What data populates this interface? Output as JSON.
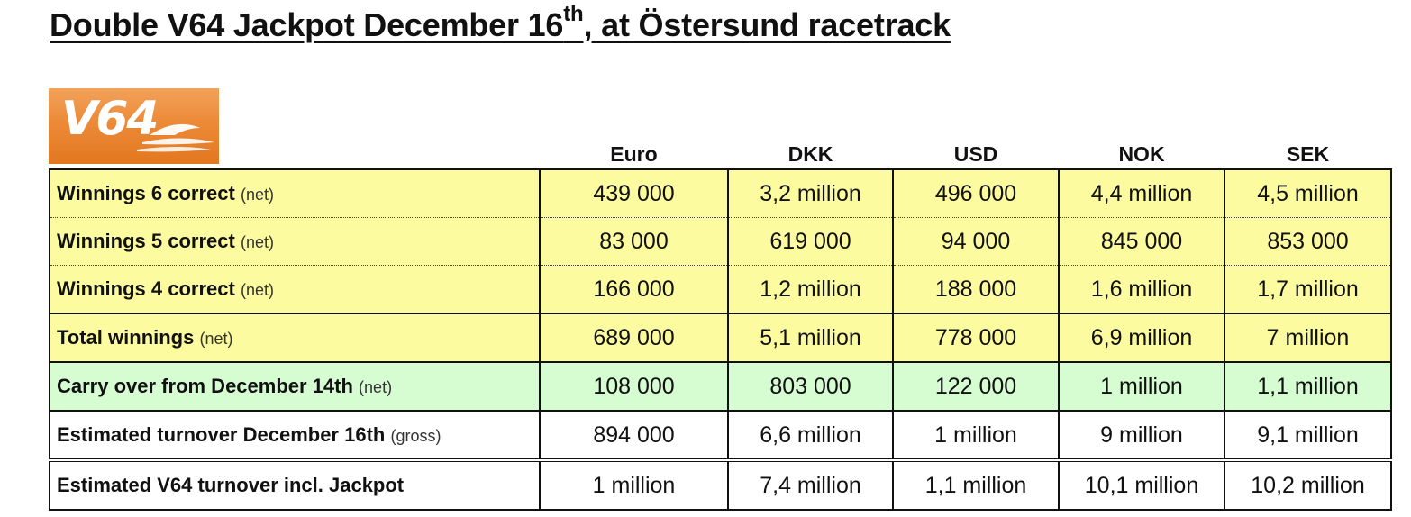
{
  "title": {
    "text_before": "Double V64 Jackpot December 16",
    "superscript": "th",
    "text_after": ", at Östersund racetrack"
  },
  "logo": {
    "text": "V64",
    "colors": {
      "background": "#ec8a38",
      "foreground": "#ffffff"
    }
  },
  "table": {
    "columns": [
      "Euro",
      "DKK",
      "USD",
      "NOK",
      "SEK"
    ],
    "rows": [
      {
        "label": "Winnings 6 correct",
        "qualifier": "(net)",
        "values": [
          "439 000",
          "3,2 million",
          "496 000",
          "4,4 million",
          "4,5 million"
        ]
      },
      {
        "label": "Winnings 5 correct",
        "qualifier": "(net)",
        "values": [
          "83 000",
          "619 000",
          "94 000",
          "845 000",
          "853 000"
        ]
      },
      {
        "label": "Winnings 4 correct",
        "qualifier": "(net)",
        "values": [
          "166 000",
          "1,2 million",
          "188 000",
          "1,6 million",
          "1,7 million"
        ]
      },
      {
        "label": "Total winnings",
        "qualifier": "(net)",
        "values": [
          "689 000",
          "5,1 million",
          "778 000",
          "6,9 million",
          "7 million"
        ]
      },
      {
        "label": "Carry over from December 14th",
        "qualifier": "(net)",
        "values": [
          "108 000",
          "803 000",
          "122 000",
          "1 million",
          "1,1 million"
        ]
      },
      {
        "label": "Estimated turnover December 16th",
        "qualifier": "(gross)",
        "values": [
          "894 000",
          "6,6 million",
          "1 million",
          "9 million",
          "9,1 million"
        ]
      },
      {
        "label": "Estimated V64 turnover incl. Jackpot",
        "qualifier": "",
        "values": [
          "1 million",
          "7,4 million",
          "1,1 million",
          "10,1 million",
          "10,2 million"
        ]
      }
    ],
    "colors": {
      "yellow_rows": "#fdfba0",
      "green_rows": "#d6fcd2",
      "white_rows": "#ffffff"
    }
  }
}
